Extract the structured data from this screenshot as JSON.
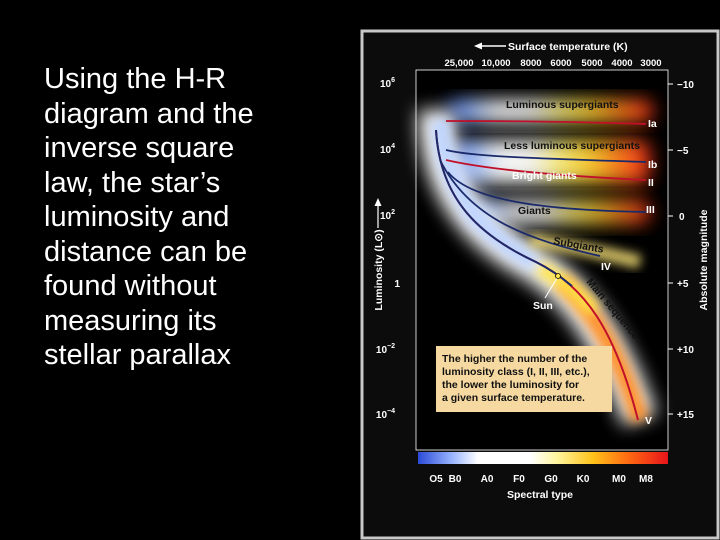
{
  "slide": {
    "text_lines": [
      "Using the H-R",
      "diagram and the",
      "inverse square",
      "law, the star’s",
      "luminosity and",
      "distance can be",
      "found without",
      "measuring its",
      "stellar parallax"
    ]
  },
  "diagram": {
    "top_axis_label": "Surface temperature (K)",
    "temperature_ticks": [
      "25,000",
      "10,000",
      "8000",
      "6000",
      "5000",
      "4000",
      "3000"
    ],
    "luminosity_ticks": [
      {
        "base": "10",
        "exp": "6"
      },
      {
        "base": "10",
        "exp": "4"
      },
      {
        "base": "10",
        "exp": "2"
      },
      {
        "base": "1",
        "exp": ""
      },
      {
        "base": "10",
        "exp": "−2"
      },
      {
        "base": "10",
        "exp": "−4"
      }
    ],
    "left_axis_label": "Luminosity (L⊙)",
    "magnitude_ticks": [
      "−10",
      "−5",
      "0",
      "+5",
      "+10",
      "+15"
    ],
    "right_axis_label": "Absolute magnitude",
    "region_labels": {
      "luminous_supergiants": "Luminous supergiants",
      "less_luminous_supergiants": "Less luminous supergiants",
      "bright_giants": "Bright giants",
      "giants": "Giants",
      "subgiants": "Subgiants",
      "main_sequence": "Main sequence",
      "sun": "Sun"
    },
    "class_labels": [
      "Ia",
      "Ib",
      "II",
      "III",
      "IV",
      "V"
    ],
    "note_lines": [
      "The higher the number of the",
      "luminosity class (I, II, III, etc.),",
      "the lower the luminosity for",
      "a given surface temperature."
    ],
    "spectral_ticks": [
      "O5",
      "B0",
      "A0",
      "F0",
      "G0",
      "K0",
      "M0",
      "M8"
    ],
    "bottom_axis_label": "Spectral type",
    "colors": {
      "panel_frame": "#c8c8c8",
      "panel_bg": "#0c0c0c",
      "note_bg": "#f6d9a0",
      "line_dark_blue": "#1a2a6a",
      "line_red": "#c0102a"
    }
  }
}
